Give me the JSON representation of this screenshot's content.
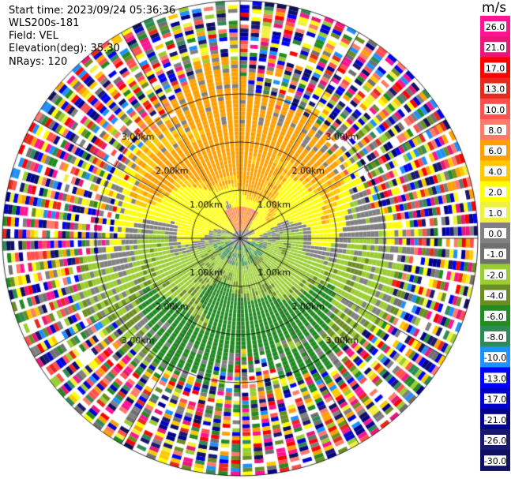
{
  "header": {
    "start_time": "Start time: 2023/09/24 05:36:36",
    "station": "WLS200s-181",
    "field": "Field: VEL",
    "elevation": "Elevation(deg): 35.30",
    "nrays": "NRays: 120"
  },
  "chart_data": {
    "type": "heatmap",
    "projection": "polar-ppi",
    "field": "VEL",
    "units": "m/s",
    "nrays": 120,
    "range_rings_km": [
      1.0,
      2.0,
      3.0
    ],
    "ring_labels": [
      "1.00km",
      "2.00km",
      "3.00km"
    ],
    "radial_lines_deg": [
      0,
      30,
      60,
      90,
      120,
      150
    ],
    "colorbar": {
      "unit_label": "m/s",
      "tick_labels": [
        "26.0",
        "21.0",
        "17.0",
        "13.0",
        "10.0",
        "8.0",
        "6.0",
        "4.0",
        "2.0",
        "1.0",
        "0.0",
        "-1.0",
        "-2.0",
        "-4.0",
        "-6.0",
        "-8.0",
        "-10.0",
        "-13.0",
        "-17.0",
        "-21.0",
        "-26.0",
        "-30.0"
      ],
      "colors": [
        "#ff1493",
        "#e8177a",
        "#ff0000",
        "#e42a1c",
        "#ff5050",
        "#ff7a6a",
        "#ffa000",
        "#ffc800",
        "#ffff00",
        "#f0f040",
        "#808080",
        "#707070",
        "#9acd32",
        "#6b8e23",
        "#228b22",
        "#2e8b57",
        "#1e90ff",
        "#0000ff",
        "#0000cd",
        "#00008b",
        "#191970",
        "#101060"
      ]
    }
  }
}
